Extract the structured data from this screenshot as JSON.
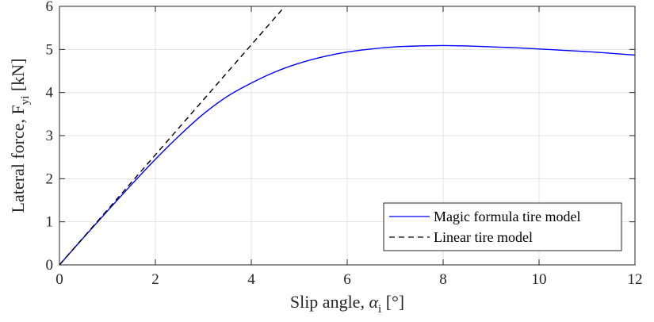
{
  "chart_data": {
    "type": "line",
    "xlabel": {
      "main": "Slip angle, ",
      "symbol": "α",
      "sub": "i",
      "unit": " [°]"
    },
    "ylabel": {
      "main": "Lateral force, F",
      "sub": "yi",
      "unit": " [kN]"
    },
    "xlim": [
      0,
      12
    ],
    "ylim": [
      0,
      6
    ],
    "xticks": [
      0,
      2,
      4,
      6,
      8,
      10,
      12
    ],
    "yticks": [
      0,
      1,
      2,
      3,
      4,
      5,
      6
    ],
    "grid": true,
    "legend_position": "bottom-right",
    "series": [
      {
        "name": "Magic formula tire model",
        "color": "#0000ff",
        "style": "solid",
        "x": [
          0,
          0.5,
          1,
          1.5,
          2,
          2.5,
          3,
          3.5,
          4,
          4.5,
          5,
          5.5,
          6,
          6.5,
          7,
          7.5,
          8,
          8.5,
          9,
          9.5,
          10,
          10.5,
          11,
          11.5,
          12
        ],
        "y": [
          0,
          0.63,
          1.25,
          1.86,
          2.45,
          3.0,
          3.5,
          3.91,
          4.22,
          4.48,
          4.68,
          4.83,
          4.94,
          5.01,
          5.06,
          5.08,
          5.09,
          5.08,
          5.06,
          5.04,
          5.01,
          4.98,
          4.95,
          4.91,
          4.87
        ]
      },
      {
        "name": "Linear tire model",
        "color": "#000000",
        "style": "dashed",
        "x": [
          0,
          4.7
        ],
        "y": [
          0,
          6.0
        ]
      }
    ]
  }
}
